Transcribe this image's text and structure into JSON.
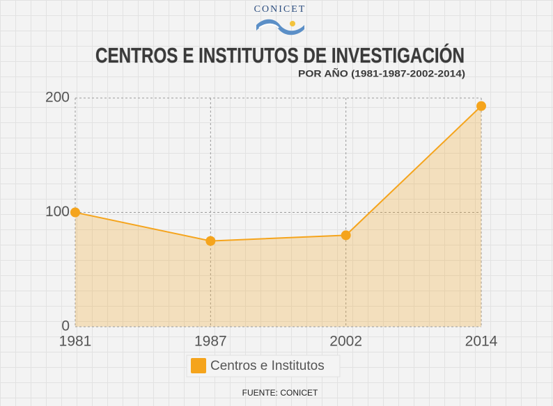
{
  "chart_data": {
    "type": "area",
    "logo_text": "CONICET",
    "title": "CENTROS E INSTITUTOS DE INVESTIGACIÓN",
    "subtitle": "POR AÑO (1981-1987-2002-2014)",
    "categories": [
      "1981",
      "1987",
      "2002",
      "2014"
    ],
    "series": [
      {
        "name": "Centros e Institutos",
        "color": "#f5a41c",
        "values": [
          100,
          75,
          80,
          193
        ]
      }
    ],
    "ylim": [
      0,
      200
    ],
    "yticks": [
      0,
      100,
      200
    ],
    "grid": true,
    "legend": "bottom",
    "source": "FUENTE: CONICET"
  }
}
